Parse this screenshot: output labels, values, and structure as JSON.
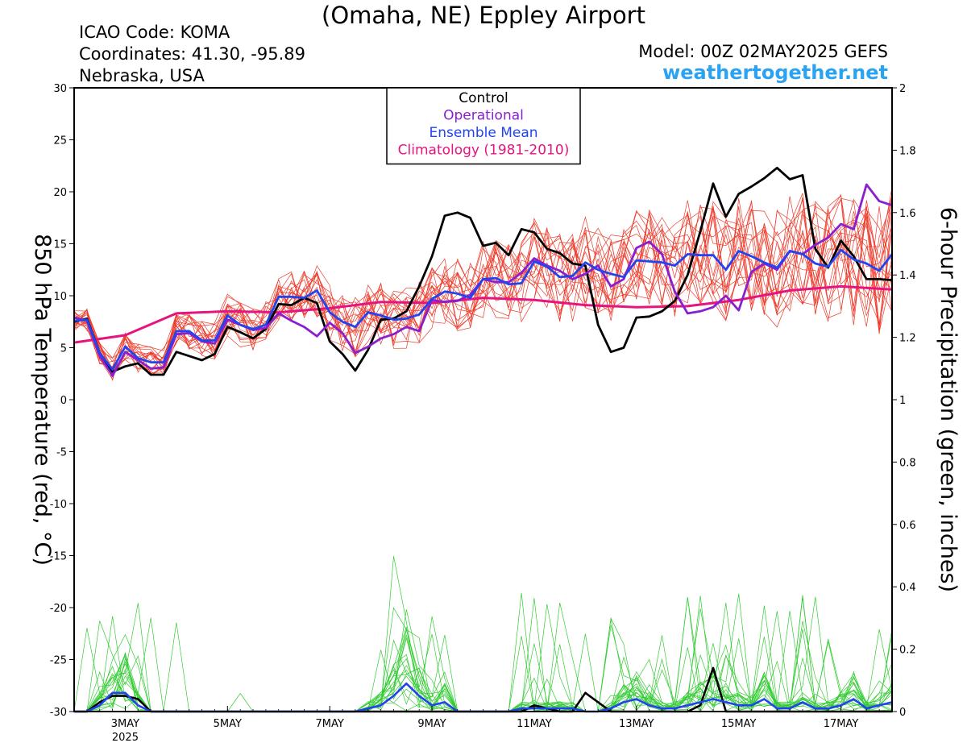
{
  "header": {
    "title": "(Omaha, NE) Eppley Airport",
    "icao": "ICAO Code: KOMA",
    "coordinates": "Coordinates: 41.30, -95.89",
    "region": "Nebraska, USA",
    "model": "Model: 00Z 02MAY2025 GEFS",
    "site": "weathertogether.net"
  },
  "colors": {
    "control": "#000000",
    "operational": "#8a1fd0",
    "ensemble_mean": "#2244ee",
    "climatology": "#e6147f",
    "members_temp": "#ee3b2b",
    "members_precip": "#33cc33",
    "site": "#29a3f2"
  },
  "chart_data": {
    "type": "line",
    "title": "(Omaha, NE) Eppley Airport",
    "xlabel": "",
    "ylabel_left": "850 hPa Temperature (red, °C)",
    "ylabel_right": "6-hour Precipitation (green, inches)",
    "x_unit": "days since 00Z 02MAY2025",
    "xlim": [
      0,
      16
    ],
    "ylim_left": [
      -30,
      30
    ],
    "ylim_right": [
      0,
      2
    ],
    "x_ticks": [
      {
        "x": 1,
        "label": "3MAY",
        "sub": "2025"
      },
      {
        "x": 3,
        "label": "5MAY",
        "sub": ""
      },
      {
        "x": 5,
        "label": "7MAY",
        "sub": ""
      },
      {
        "x": 7,
        "label": "9MAY",
        "sub": ""
      },
      {
        "x": 9,
        "label": "11MAY",
        "sub": ""
      },
      {
        "x": 11,
        "label": "13MAY",
        "sub": ""
      },
      {
        "x": 13,
        "label": "15MAY",
        "sub": ""
      },
      {
        "x": 15,
        "label": "17MAY",
        "sub": ""
      }
    ],
    "y_ticks_left": [
      30,
      25,
      20,
      15,
      10,
      5,
      0,
      -5,
      -10,
      -15,
      -20,
      -25,
      -30
    ],
    "y_ticks_right": [
      {
        "v": 2,
        "label": "2"
      },
      {
        "v": 1.8,
        "label": "1.8"
      },
      {
        "v": 1.6,
        "label": "1.6"
      },
      {
        "v": 1.4,
        "label": "1.4"
      },
      {
        "v": 1.2,
        "label": "1.2"
      },
      {
        "v": 1,
        "label": "1"
      },
      {
        "v": 0.8,
        "label": "0.8"
      },
      {
        "v": 0.6,
        "label": "0.6"
      },
      {
        "v": 0.4,
        "label": "0.4"
      },
      {
        "v": 0.2,
        "label": "0.2"
      },
      {
        "v": 0,
        "label": "0"
      }
    ],
    "legend": {
      "placement": "top-center",
      "entries": [
        {
          "label": "Control",
          "color": "#000000"
        },
        {
          "label": "Operational",
          "color": "#8a1fd0"
        },
        {
          "label": "Ensemble Mean",
          "color": "#2244ee"
        },
        {
          "label": "Climatology (1981-2010)",
          "color": "#e6147f"
        }
      ]
    },
    "series": [
      {
        "name": "Control",
        "axis": "left",
        "color": "#000000",
        "x": [
          0,
          0.25,
          0.5,
          0.75,
          1,
          1.25,
          1.5,
          1.75,
          2,
          2.25,
          2.5,
          2.75,
          3,
          3.25,
          3.5,
          3.75,
          4,
          4.25,
          4.5,
          4.75,
          5,
          5.25,
          5.5,
          5.75,
          6,
          6.25,
          6.5,
          6.75,
          7,
          7.25,
          7.5,
          7.75,
          8,
          8.25,
          8.5,
          8.75,
          9,
          9.25,
          9.5,
          9.75,
          10,
          10.25,
          10.5,
          10.75,
          11,
          11.25,
          11.5,
          11.75,
          12,
          12.25,
          12.5,
          12.75,
          13,
          13.25,
          13.5,
          13.75,
          14,
          14.25,
          14.5,
          14.75,
          15,
          15.25,
          15.5,
          15.75,
          16
        ],
        "values": [
          7.5,
          7.8,
          4.5,
          2.7,
          3.2,
          3.5,
          2.4,
          2.4,
          4.6,
          4.2,
          3.8,
          4.4,
          7.0,
          6.5,
          5.9,
          6.8,
          9.2,
          9.1,
          9.8,
          9.3,
          5.6,
          4.4,
          2.8,
          4.8,
          7.7,
          7.8,
          8.5,
          10.9,
          13.8,
          17.7,
          18.0,
          17.5,
          14.8,
          15.1,
          13.9,
          16.4,
          16.1,
          14.5,
          14.1,
          13.1,
          12.9,
          7.2,
          4.6,
          5.0,
          7.9,
          8.0,
          8.5,
          9.5,
          12.0,
          16.2,
          20.8,
          17.6,
          19.8,
          20.5,
          21.3,
          22.3,
          21.2,
          21.6,
          14.5,
          12.7,
          15.3,
          13.8,
          11.6,
          11.6,
          11.5
        ]
      },
      {
        "name": "Operational",
        "axis": "left",
        "color": "#8a1fd0",
        "x": [
          0,
          0.25,
          0.5,
          0.75,
          1,
          1.25,
          1.5,
          1.75,
          2,
          2.25,
          2.5,
          2.75,
          3,
          3.25,
          3.5,
          3.75,
          4,
          4.25,
          4.5,
          4.75,
          5,
          5.25,
          5.5,
          5.75,
          6,
          6.25,
          6.5,
          6.75,
          7,
          7.25,
          7.5,
          7.75,
          8,
          8.25,
          8.5,
          8.75,
          9,
          9.25,
          9.5,
          9.75,
          10,
          10.25,
          10.5,
          10.75,
          11,
          11.25,
          11.5,
          11.75,
          12,
          12.25,
          12.5,
          12.75,
          13,
          13.25,
          13.5,
          13.75,
          14,
          14.25,
          14.5,
          14.75,
          15,
          15.25,
          15.5,
          15.75,
          16
        ],
        "values": [
          7.9,
          7.6,
          4.2,
          2.3,
          4.6,
          3.8,
          3.0,
          3.1,
          6.3,
          6.4,
          5.6,
          5.4,
          7.7,
          7.2,
          6.7,
          6.9,
          8.3,
          7.6,
          7.0,
          6.1,
          7.4,
          6.4,
          4.5,
          5.1,
          5.9,
          6.3,
          7.0,
          6.6,
          9.6,
          9.4,
          9.5,
          10.1,
          11.6,
          11.3,
          11.3,
          12.2,
          13.6,
          12.9,
          12.4,
          11.6,
          12.1,
          12.9,
          10.9,
          11.6,
          14.6,
          15.2,
          14.0,
          10.4,
          8.3,
          8.5,
          8.9,
          10.0,
          8.6,
          12.3,
          13.1,
          12.5,
          14.3,
          14.0,
          14.9,
          15.6,
          16.9,
          16.4,
          20.7,
          19.1,
          18.7
        ]
      },
      {
        "name": "Ensemble Mean",
        "axis": "left",
        "color": "#2244ee",
        "x": [
          0,
          0.25,
          0.5,
          0.75,
          1,
          1.25,
          1.5,
          1.75,
          2,
          2.25,
          2.5,
          2.75,
          3,
          3.25,
          3.5,
          3.75,
          4,
          4.25,
          4.5,
          4.75,
          5,
          5.25,
          5.5,
          5.75,
          6,
          6.25,
          6.5,
          6.75,
          7,
          7.25,
          7.5,
          7.75,
          8,
          8.25,
          8.5,
          8.75,
          9,
          9.25,
          9.5,
          9.75,
          10,
          10.25,
          10.5,
          10.75,
          11,
          11.25,
          11.5,
          11.75,
          12,
          12.25,
          12.5,
          12.75,
          13,
          13.25,
          13.5,
          13.75,
          14,
          14.25,
          14.5,
          14.75,
          15,
          15.25,
          15.5,
          15.75,
          16
        ],
        "values": [
          7.6,
          7.7,
          4.5,
          2.9,
          5.1,
          4.0,
          3.6,
          3.6,
          6.6,
          6.6,
          5.7,
          5.7,
          8.1,
          7.2,
          6.8,
          7.2,
          9.9,
          9.9,
          9.8,
          10.5,
          8.4,
          7.5,
          7.0,
          8.4,
          8.1,
          7.7,
          7.8,
          8.2,
          9.7,
          10.4,
          10.2,
          9.8,
          11.6,
          11.7,
          11.1,
          11.2,
          13.3,
          12.8,
          11.8,
          11.9,
          13.2,
          12.5,
          12.1,
          11.8,
          13.4,
          13.3,
          13.2,
          12.9,
          14.0,
          13.9,
          13.9,
          12.5,
          14.3,
          13.8,
          13.2,
          12.7,
          14.3,
          14.0,
          13.1,
          12.8,
          14.4,
          13.5,
          13.1,
          12.4,
          14.0
        ]
      },
      {
        "name": "Climatology (1981-2010)",
        "axis": "left",
        "color": "#e6147f",
        "x": [
          0,
          1,
          2,
          3,
          4,
          5,
          6,
          7,
          8,
          9,
          10,
          11,
          12,
          13,
          14,
          15,
          16
        ],
        "values": [
          5.5,
          6.2,
          8.3,
          8.5,
          8.4,
          8.8,
          9.4,
          9.3,
          9.8,
          9.6,
          9.1,
          8.9,
          9.0,
          9.6,
          10.5,
          10.9,
          10.6
        ]
      },
      {
        "name": "Control precipitation",
        "axis": "right",
        "color": "#000000",
        "x": [
          0,
          0.25,
          0.5,
          0.75,
          1,
          1.25,
          1.5,
          1.75,
          2,
          2.25,
          2.5,
          2.75,
          3,
          3.25,
          3.5,
          3.75,
          4,
          4.25,
          4.5,
          4.75,
          5,
          5.25,
          5.5,
          5.75,
          6,
          6.25,
          6.5,
          6.75,
          7,
          7.25,
          7.5,
          7.75,
          8,
          8.25,
          8.5,
          8.75,
          9,
          9.25,
          9.5,
          9.75,
          10,
          10.25,
          10.5,
          10.75,
          11,
          11.25,
          11.5,
          11.75,
          12,
          12.25,
          12.5,
          12.75,
          13,
          13.25,
          13.5,
          13.75,
          14,
          14.25,
          14.5,
          14.75,
          15,
          15.25,
          15.5,
          15.75,
          16
        ],
        "values": [
          0,
          0,
          0.03,
          0.05,
          0.05,
          0.04,
          0,
          0,
          0,
          0,
          0,
          0,
          0,
          0,
          0,
          0,
          0,
          0,
          0,
          0,
          0,
          0,
          0,
          0,
          0,
          0,
          0,
          0,
          0,
          0,
          0,
          0,
          0,
          0,
          0,
          0,
          0.02,
          0.01,
          0,
          0,
          0.06,
          0.03,
          0,
          0,
          0,
          0,
          0,
          0,
          0,
          0.02,
          0.14,
          0,
          0,
          0,
          0,
          0,
          0,
          0,
          0,
          0,
          0,
          0,
          0,
          0,
          0
        ]
      },
      {
        "name": "Ensemble Mean precipitation",
        "axis": "right",
        "color": "#2244ee",
        "x": [
          0,
          0.25,
          0.5,
          0.75,
          1,
          1.25,
          1.5,
          1.75,
          2,
          2.25,
          2.5,
          2.75,
          3,
          3.25,
          3.5,
          3.75,
          4,
          4.25,
          4.5,
          4.75,
          5,
          5.25,
          5.5,
          5.75,
          6,
          6.25,
          6.5,
          6.75,
          7,
          7.25,
          7.5,
          7.75,
          8,
          8.25,
          8.5,
          8.75,
          9,
          9.25,
          9.5,
          9.75,
          10,
          10.25,
          10.5,
          10.75,
          11,
          11.25,
          11.5,
          11.75,
          12,
          12.25,
          12.5,
          12.75,
          13,
          13.25,
          13.5,
          13.75,
          14,
          14.25,
          14.5,
          14.75,
          15,
          15.25,
          15.5,
          15.75,
          16
        ],
        "values": [
          0,
          0,
          0.02,
          0.06,
          0.06,
          0.02,
          0,
          0,
          0,
          0,
          0,
          0,
          0,
          0,
          0,
          0,
          0,
          0,
          0,
          0,
          0,
          0,
          0,
          0.01,
          0.02,
          0.05,
          0.09,
          0.05,
          0.02,
          0.03,
          0,
          0,
          0,
          0,
          0,
          0.01,
          0.01,
          0.01,
          0.01,
          0.01,
          0,
          0,
          0.01,
          0.03,
          0.04,
          0.02,
          0.01,
          0.01,
          0.02,
          0.03,
          0.04,
          0.03,
          0.02,
          0.02,
          0.04,
          0.01,
          0.01,
          0.03,
          0.01,
          0.01,
          0.02,
          0.04,
          0.01,
          0.02,
          0.03
        ]
      }
    ],
    "members_note": "ensemble spread",
    "annotations": []
  }
}
